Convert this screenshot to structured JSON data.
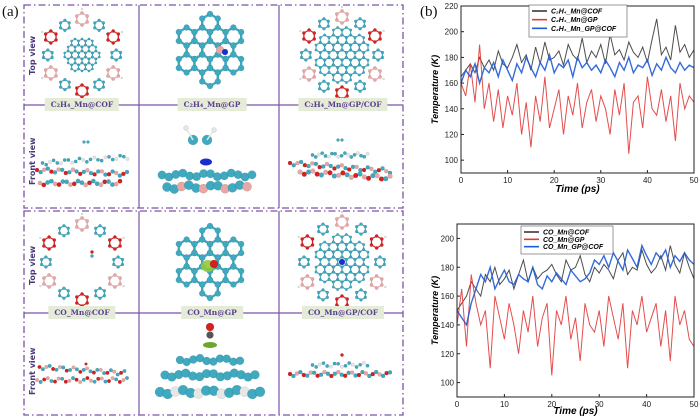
{
  "panel_a": {
    "label": "(a)",
    "row_labels": {
      "top": "Top view",
      "front": "Front view"
    },
    "systems_c2h4": [
      "C₂H₄_Mn@COF",
      "C₂H₄_Mn@GP",
      "C₂H₄_Mn@GP/COF"
    ],
    "systems_co": [
      "CO_Mn@COF",
      "CO_Mn@GP",
      "CO_Mn@GP/COF"
    ],
    "colors": {
      "frame": "#7a55a8",
      "carbon": "#3fa9c0",
      "oxygen": "#d62020",
      "boron": "#e8a7a7",
      "hydrogen": "#e6e6e6",
      "mn": "#1a2fd0"
    }
  },
  "panel_b_label": "(b)",
  "chart_data": [
    {
      "type": "line",
      "title": "",
      "xlabel": "Time (ps)",
      "ylabel": "Temperature (K)",
      "xlim": [
        0,
        50
      ],
      "ylim": [
        90,
        220
      ],
      "xticks": [
        0,
        10,
        20,
        30,
        40,
        50
      ],
      "yticks": [
        100,
        120,
        140,
        160,
        180,
        200,
        220
      ],
      "legend_position": "top-center",
      "x": [
        0,
        1,
        2,
        3,
        4,
        5,
        6,
        7,
        8,
        9,
        10,
        11,
        12,
        13,
        14,
        15,
        16,
        17,
        18,
        19,
        20,
        21,
        22,
        23,
        24,
        25,
        26,
        27,
        28,
        29,
        30,
        31,
        32,
        33,
        34,
        35,
        36,
        37,
        38,
        39,
        40,
        41,
        42,
        43,
        44,
        45,
        46,
        47,
        48,
        49,
        50
      ],
      "series": [
        {
          "name": "C₂H₄_Mn@COF",
          "color": "#3a3a3a",
          "values": [
            165,
            170,
            175,
            168,
            180,
            172,
            178,
            170,
            185,
            175,
            172,
            180,
            190,
            176,
            182,
            170,
            188,
            175,
            192,
            178,
            180,
            185,
            174,
            190,
            182,
            178,
            195,
            176,
            185,
            180,
            190,
            175,
            198,
            182,
            186,
            178,
            192,
            184,
            180,
            188,
            176,
            194,
            210,
            182,
            188,
            178,
            205,
            184,
            190,
            180,
            186
          ]
        },
        {
          "name": "C₂H₄_Mn@GP",
          "color": "#e03a3a",
          "values": [
            160,
            150,
            175,
            145,
            190,
            140,
            160,
            130,
            155,
            125,
            150,
            135,
            160,
            120,
            145,
            110,
            150,
            130,
            165,
            125,
            140,
            155,
            120,
            150,
            135,
            160,
            125,
            145,
            155,
            130,
            150,
            140,
            120,
            155,
            135,
            160,
            105,
            145,
            150,
            125,
            165,
            140,
            135,
            155,
            130,
            150,
            115,
            160,
            140,
            150,
            145
          ]
        },
        {
          "name": "C₂H₄_Mn_GP@COF",
          "color": "#1f5bd6",
          "values": [
            160,
            170,
            165,
            175,
            160,
            172,
            168,
            176,
            165,
            178,
            170,
            162,
            175,
            168,
            180,
            172,
            165,
            176,
            170,
            182,
            168,
            175,
            172,
            178,
            165,
            180,
            172,
            176,
            170,
            174,
            168,
            178,
            172,
            165,
            176,
            170,
            180,
            168,
            174,
            172,
            178,
            166,
            175,
            170,
            180,
            172,
            168,
            176,
            170,
            174,
            172
          ]
        }
      ]
    },
    {
      "type": "line",
      "title": "",
      "xlabel": "Time (ps)",
      "ylabel": "Temperature (K)",
      "xlim": [
        0,
        50
      ],
      "ylim": [
        90,
        210
      ],
      "xticks": [
        0,
        10,
        20,
        30,
        40,
        50
      ],
      "yticks": [
        100,
        120,
        140,
        160,
        180,
        200
      ],
      "legend_position": "top-center",
      "x": [
        0,
        1,
        2,
        3,
        4,
        5,
        6,
        7,
        8,
        9,
        10,
        11,
        12,
        13,
        14,
        15,
        16,
        17,
        18,
        19,
        20,
        21,
        22,
        23,
        24,
        25,
        26,
        27,
        28,
        29,
        30,
        31,
        32,
        33,
        34,
        35,
        36,
        37,
        38,
        39,
        40,
        41,
        42,
        43,
        44,
        45,
        46,
        47,
        48,
        49,
        50
      ],
      "series": [
        {
          "name": "CO_Mn@COF",
          "color": "#3a3a3a",
          "values": [
            150,
            155,
            160,
            170,
            165,
            160,
            175,
            170,
            180,
            168,
            172,
            178,
            165,
            175,
            185,
            170,
            180,
            172,
            176,
            178,
            182,
            175,
            170,
            185,
            178,
            180,
            188,
            175,
            170,
            180,
            176,
            182,
            178,
            172,
            185,
            190,
            175,
            180,
            178,
            192,
            182,
            176,
            180,
            188,
            178,
            195,
            182,
            176,
            190,
            180,
            172
          ]
        },
        {
          "name": "CO_Mn@GP",
          "color": "#e03a3a",
          "values": [
            140,
            165,
            125,
            175,
            155,
            140,
            150,
            110,
            160,
            145,
            130,
            155,
            140,
            120,
            150,
            135,
            160,
            125,
            145,
            155,
            105,
            150,
            140,
            160,
            130,
            145,
            115,
            155,
            140,
            135,
            150,
            125,
            160,
            145,
            130,
            155,
            110,
            150,
            140,
            160,
            135,
            145,
            155,
            125,
            150,
            115,
            160,
            140,
            150,
            130,
            125
          ]
        },
        {
          "name": "CO_Mn_GP@COF",
          "color": "#1f5bd6",
          "values": [
            150,
            145,
            140,
            155,
            165,
            175,
            170,
            180,
            165,
            172,
            178,
            170,
            168,
            175,
            172,
            170,
            180,
            168,
            165,
            174,
            170,
            176,
            172,
            168,
            178,
            174,
            170,
            172,
            176,
            185,
            182,
            188,
            180,
            190,
            184,
            178,
            192,
            186,
            180,
            195,
            188,
            182,
            190,
            186,
            192,
            180,
            188,
            184,
            190,
            185,
            182
          ]
        }
      ]
    }
  ]
}
